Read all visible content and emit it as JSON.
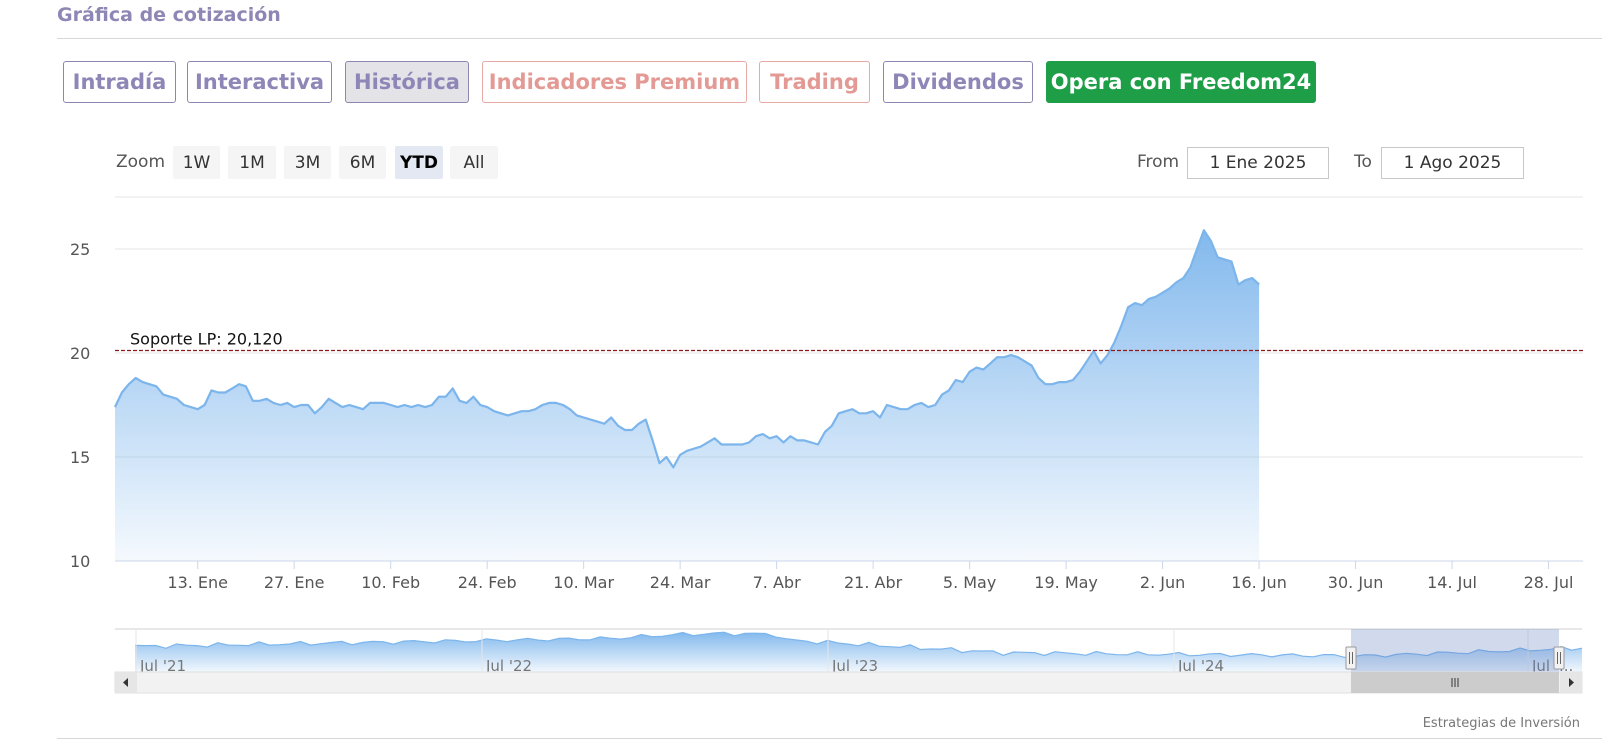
{
  "title": "Gráfica de cotización",
  "tabs": [
    {
      "label": "Intradía",
      "style": "normal"
    },
    {
      "label": "Interactiva",
      "style": "normal"
    },
    {
      "label": "Histórica",
      "style": "active"
    },
    {
      "label": "Indicadores Premium",
      "style": "premium"
    },
    {
      "label": "Trading",
      "style": "premium"
    },
    {
      "label": "Dividendos",
      "style": "normal"
    },
    {
      "label": "Opera con Freedom24",
      "style": "cta"
    }
  ],
  "zoom": {
    "label": "Zoom",
    "buttons": [
      "1W",
      "1M",
      "3M",
      "6M",
      "YTD",
      "All"
    ],
    "selected": "YTD"
  },
  "range": {
    "from_label": "From",
    "from_value": "1 Ene 2025",
    "to_label": "To",
    "to_value": "1 Ago 2025"
  },
  "colors": {
    "accent": "#8e86b4",
    "cta": "#1e9f47",
    "premium": "#e39a94",
    "line": "#7cb5ec",
    "support": "#8b1a1a"
  },
  "credit": "Estrategias de Inversión",
  "chart_data": {
    "type": "area",
    "title": "",
    "xlabel": "",
    "ylabel": "",
    "ylim": [
      10,
      27.5
    ],
    "y_ticks": [
      10,
      15,
      20,
      25
    ],
    "x_ticks": [
      "13. Ene",
      "27. Ene",
      "10. Feb",
      "24. Feb",
      "10. Mar",
      "24. Mar",
      "7. Abr",
      "21. Abr",
      "5. May",
      "19. May",
      "2. Jun",
      "16. Jun",
      "30. Jun",
      "14. Jul",
      "28. Jul"
    ],
    "x_tick_days": [
      12,
      26,
      40,
      54,
      68,
      82,
      96,
      110,
      124,
      138,
      152,
      166,
      180,
      194,
      208
    ],
    "x_range_days": [
      0,
      213
    ],
    "support_line": {
      "label": "Soporte LP: 20,120",
      "value": 20.12
    },
    "series": [
      {
        "values": [
          [
            0,
            17.4
          ],
          [
            1,
            18.1
          ],
          [
            2,
            18.5
          ],
          [
            3,
            18.8
          ],
          [
            4,
            18.6
          ],
          [
            5,
            18.5
          ],
          [
            6,
            18.4
          ],
          [
            7,
            18.0
          ],
          [
            8,
            17.9
          ],
          [
            9,
            17.8
          ],
          [
            10,
            17.5
          ],
          [
            11,
            17.4
          ],
          [
            12,
            17.3
          ],
          [
            13,
            17.5
          ],
          [
            14,
            18.2
          ],
          [
            15,
            18.1
          ],
          [
            16,
            18.1
          ],
          [
            17,
            18.3
          ],
          [
            18,
            18.5
          ],
          [
            19,
            18.4
          ],
          [
            20,
            17.7
          ],
          [
            21,
            17.7
          ],
          [
            22,
            17.8
          ],
          [
            23,
            17.6
          ],
          [
            24,
            17.5
          ],
          [
            25,
            17.6
          ],
          [
            26,
            17.4
          ],
          [
            27,
            17.5
          ],
          [
            28,
            17.5
          ],
          [
            29,
            17.1
          ],
          [
            30,
            17.4
          ],
          [
            31,
            17.8
          ],
          [
            32,
            17.6
          ],
          [
            33,
            17.4
          ],
          [
            34,
            17.5
          ],
          [
            35,
            17.4
          ],
          [
            36,
            17.3
          ],
          [
            37,
            17.6
          ],
          [
            38,
            17.6
          ],
          [
            39,
            17.6
          ],
          [
            40,
            17.5
          ],
          [
            41,
            17.4
          ],
          [
            42,
            17.5
          ],
          [
            43,
            17.4
          ],
          [
            44,
            17.5
          ],
          [
            45,
            17.4
          ],
          [
            46,
            17.5
          ],
          [
            47,
            17.9
          ],
          [
            48,
            17.9
          ],
          [
            49,
            18.3
          ],
          [
            50,
            17.7
          ],
          [
            51,
            17.6
          ],
          [
            52,
            17.9
          ],
          [
            53,
            17.5
          ],
          [
            54,
            17.4
          ],
          [
            55,
            17.2
          ],
          [
            56,
            17.1
          ],
          [
            57,
            17.0
          ],
          [
            58,
            17.1
          ],
          [
            59,
            17.2
          ],
          [
            60,
            17.2
          ],
          [
            61,
            17.3
          ],
          [
            62,
            17.5
          ],
          [
            63,
            17.6
          ],
          [
            64,
            17.6
          ],
          [
            65,
            17.5
          ],
          [
            66,
            17.3
          ],
          [
            67,
            17.0
          ],
          [
            68,
            16.9
          ],
          [
            69,
            16.8
          ],
          [
            70,
            16.7
          ],
          [
            71,
            16.6
          ],
          [
            72,
            16.9
          ],
          [
            73,
            16.5
          ],
          [
            74,
            16.3
          ],
          [
            75,
            16.3
          ],
          [
            76,
            16.6
          ],
          [
            77,
            16.8
          ],
          [
            78,
            15.8
          ],
          [
            79,
            14.7
          ],
          [
            80,
            15.0
          ],
          [
            81,
            14.5
          ],
          [
            82,
            15.1
          ],
          [
            83,
            15.3
          ],
          [
            84,
            15.4
          ],
          [
            85,
            15.5
          ],
          [
            86,
            15.7
          ],
          [
            87,
            15.9
          ],
          [
            88,
            15.6
          ],
          [
            89,
            15.6
          ],
          [
            90,
            15.6
          ],
          [
            91,
            15.6
          ],
          [
            92,
            15.7
          ],
          [
            93,
            16.0
          ],
          [
            94,
            16.1
          ],
          [
            95,
            15.9
          ],
          [
            96,
            16.0
          ],
          [
            97,
            15.7
          ],
          [
            98,
            16.0
          ],
          [
            99,
            15.8
          ],
          [
            100,
            15.8
          ],
          [
            101,
            15.7
          ],
          [
            102,
            15.6
          ],
          [
            103,
            16.2
          ],
          [
            104,
            16.5
          ],
          [
            105,
            17.1
          ],
          [
            106,
            17.2
          ],
          [
            107,
            17.3
          ],
          [
            108,
            17.1
          ],
          [
            109,
            17.1
          ],
          [
            110,
            17.2
          ],
          [
            111,
            16.9
          ],
          [
            112,
            17.5
          ],
          [
            113,
            17.4
          ],
          [
            114,
            17.3
          ],
          [
            115,
            17.3
          ],
          [
            116,
            17.5
          ],
          [
            117,
            17.6
          ],
          [
            118,
            17.4
          ],
          [
            119,
            17.5
          ],
          [
            120,
            18.0
          ],
          [
            121,
            18.2
          ],
          [
            122,
            18.7
          ],
          [
            123,
            18.6
          ],
          [
            124,
            19.1
          ],
          [
            125,
            19.3
          ],
          [
            126,
            19.2
          ],
          [
            127,
            19.5
          ],
          [
            128,
            19.8
          ],
          [
            129,
            19.8
          ],
          [
            130,
            19.9
          ],
          [
            131,
            19.8
          ],
          [
            132,
            19.6
          ],
          [
            133,
            19.4
          ],
          [
            134,
            18.8
          ],
          [
            135,
            18.5
          ],
          [
            136,
            18.5
          ],
          [
            137,
            18.6
          ],
          [
            138,
            18.6
          ],
          [
            139,
            18.7
          ],
          [
            140,
            19.1
          ],
          [
            141,
            19.6
          ],
          [
            142,
            20.1
          ],
          [
            143,
            19.5
          ],
          [
            144,
            19.9
          ],
          [
            145,
            20.5
          ],
          [
            146,
            21.3
          ],
          [
            147,
            22.2
          ],
          [
            148,
            22.4
          ],
          [
            149,
            22.3
          ],
          [
            150,
            22.6
          ],
          [
            151,
            22.7
          ],
          [
            152,
            22.9
          ],
          [
            153,
            23.1
          ],
          [
            154,
            23.4
          ],
          [
            155,
            23.6
          ],
          [
            156,
            24.1
          ],
          [
            157,
            25.0
          ],
          [
            158,
            25.9
          ],
          [
            159,
            25.4
          ],
          [
            160,
            24.6
          ],
          [
            161,
            24.5
          ],
          [
            162,
            24.4
          ],
          [
            163,
            23.3
          ],
          [
            164,
            23.5
          ],
          [
            165,
            23.6
          ],
          [
            166,
            23.3
          ]
        ]
      }
    ],
    "navigator": {
      "tick_labels": [
        "Jul '21",
        "Jul '22",
        "Jul '23",
        "Jul '24",
        "Jul '..."
      ]
    }
  }
}
